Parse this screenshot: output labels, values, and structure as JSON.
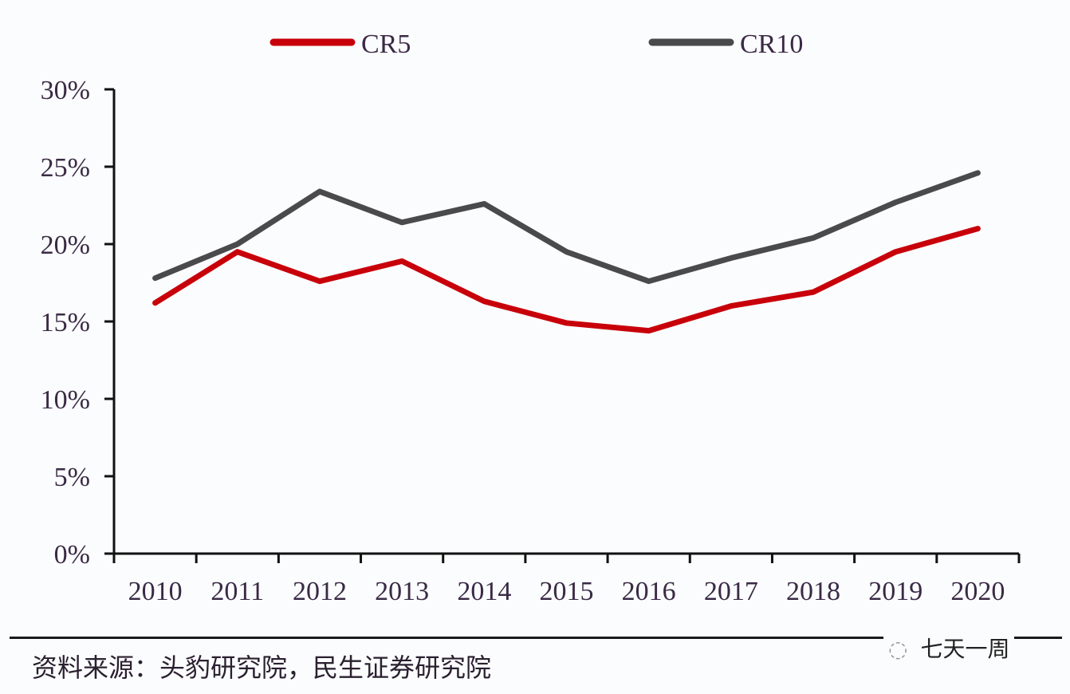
{
  "chart_data": {
    "type": "line",
    "title": "",
    "xlabel": "",
    "ylabel": "",
    "categories": [
      "2010",
      "2011",
      "2012",
      "2013",
      "2014",
      "2015",
      "2016",
      "2017",
      "2018",
      "2019",
      "2020"
    ],
    "series": [
      {
        "name": "CR5",
        "color": "#c8000a",
        "values": [
          16.2,
          19.5,
          17.6,
          18.9,
          16.3,
          14.9,
          14.4,
          16.0,
          16.9,
          19.5,
          21.0
        ]
      },
      {
        "name": "CR10",
        "color": "#4a4a4c",
        "values": [
          17.8,
          20.0,
          23.4,
          21.4,
          22.6,
          19.5,
          17.6,
          19.1,
          20.4,
          22.7,
          24.6
        ]
      }
    ],
    "ylim": [
      0,
      30
    ],
    "yticks": [
      "0%",
      "5%",
      "10%",
      "15%",
      "20%",
      "25%",
      "30%"
    ],
    "grid": false,
    "legend_position": "top"
  },
  "footer": {
    "source": "资料来源：头豹研究院，民生证券研究院",
    "watermark": "七天一周",
    "watermark_icon": "chat-bubble-icon"
  }
}
